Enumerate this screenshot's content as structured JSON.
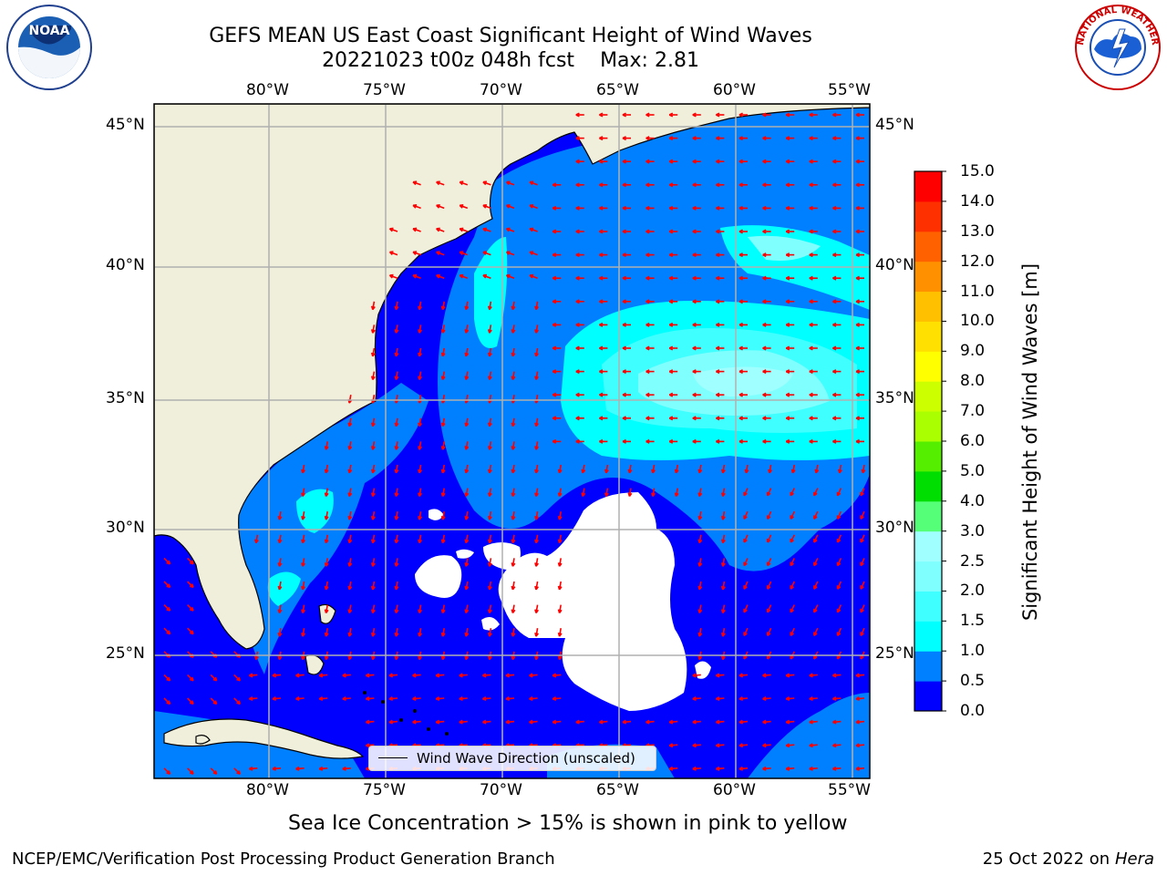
{
  "title_line1": "GEFS MEAN US East Coast Significant Height of Wind Waves",
  "title_line2_a": "20221023 t00z 048h fcst",
  "title_line2_b": "Max: 2.81",
  "logos": {
    "left": "NOAA",
    "right": "NATIONAL WEATHER SERVICE"
  },
  "colorbar": {
    "title": "Significant Height of Wind Waves [m]",
    "labels": [
      "0.0",
      "0.5",
      "1.0",
      "1.5",
      "2.0",
      "2.5",
      "3.0",
      "4.0",
      "5.0",
      "6.0",
      "7.0",
      "8.0",
      "9.0",
      "10.0",
      "11.0",
      "12.0",
      "13.0",
      "14.0",
      "15.0"
    ],
    "colors": [
      "#0000ff",
      "#0080ff",
      "#00ffff",
      "#40ffff",
      "#80ffff",
      "#a0ffff",
      "#55ff77",
      "#00dd00",
      "#55ee00",
      "#aaff00",
      "#ccff00",
      "#ffff00",
      "#ffe000",
      "#ffc000",
      "#ff9000",
      "#ff6000",
      "#ff3000",
      "#ff0000"
    ]
  },
  "map": {
    "lon_labels": [
      "80°W",
      "75°W",
      "70°W",
      "65°W",
      "60°W",
      "55°W"
    ],
    "lat_labels": [
      "45°N",
      "40°N",
      "35°N",
      "30°N",
      "25°N"
    ],
    "land_color": "#efefdc",
    "nodata_color": "#ffffff",
    "arrow_color": "#ff0000",
    "legend": "Wind Wave Direction (unscaled)"
  },
  "footnote": "Sea Ice Concentration > 15% is shown in pink to yellow",
  "credit": "NCEP/EMC/Verification Post Processing Product Generation Branch",
  "date_text": "25 Oct 2022 on",
  "date_host": "Hera"
}
